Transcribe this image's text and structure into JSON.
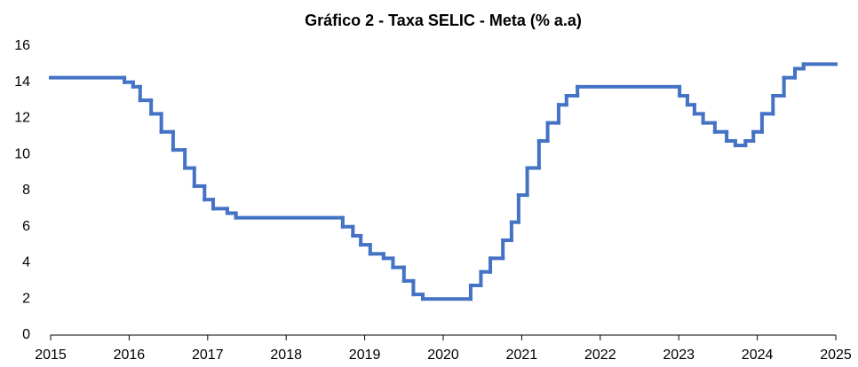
{
  "chart_data": {
    "type": "line",
    "title": "Gráfico 2 - Taxa SELIC - Meta (% a.a)",
    "drawstyle": "steps-post",
    "color": "#4472c4",
    "grid": false,
    "x": [
      2015,
      2015.94,
      2016.05,
      2016.14,
      2016.28,
      2016.41,
      2016.56,
      2016.71,
      2016.83,
      2016.96,
      2017.07,
      2017.25,
      2017.36,
      2018.72,
      2018.85,
      2018.95,
      2019.07,
      2019.24,
      2019.36,
      2019.5,
      2019.62,
      2019.74,
      2020.35,
      2020.48,
      2020.6,
      2020.76,
      2020.87,
      2020.96,
      2021.07,
      2021.22,
      2021.33,
      2021.47,
      2021.57,
      2021.71,
      2023.01,
      2023.11,
      2023.2,
      2023.31,
      2023.46,
      2023.61,
      2023.72,
      2023.85,
      2023.95,
      2024.06,
      2024.2,
      2024.34,
      2024.48,
      2024.59
    ],
    "values": [
      14.25,
      14,
      13.75,
      13,
      12.25,
      11.25,
      10.25,
      9.25,
      8.25,
      7.5,
      7,
      6.75,
      6.5,
      6,
      5.5,
      5,
      4.5,
      4.25,
      3.75,
      3,
      2.25,
      2,
      2.75,
      3.5,
      4.25,
      5.25,
      6.25,
      7.75,
      9.25,
      10.75,
      11.75,
      12.75,
      13.25,
      13.75,
      13.25,
      12.75,
      12.25,
      11.75,
      11.25,
      10.75,
      10.5,
      10.75,
      11.25,
      12.25,
      13.25,
      14.25,
      14.75,
      15
    ],
    "xlim": [
      2015,
      2025
    ],
    "xticks": [
      2015,
      2016,
      2017,
      2018,
      2019,
      2020,
      2021,
      2022,
      2023,
      2024,
      2025
    ],
    "ylim": [
      0,
      16
    ],
    "yticks": [
      0,
      2,
      4,
      6,
      8,
      10,
      12,
      14,
      16
    ]
  }
}
